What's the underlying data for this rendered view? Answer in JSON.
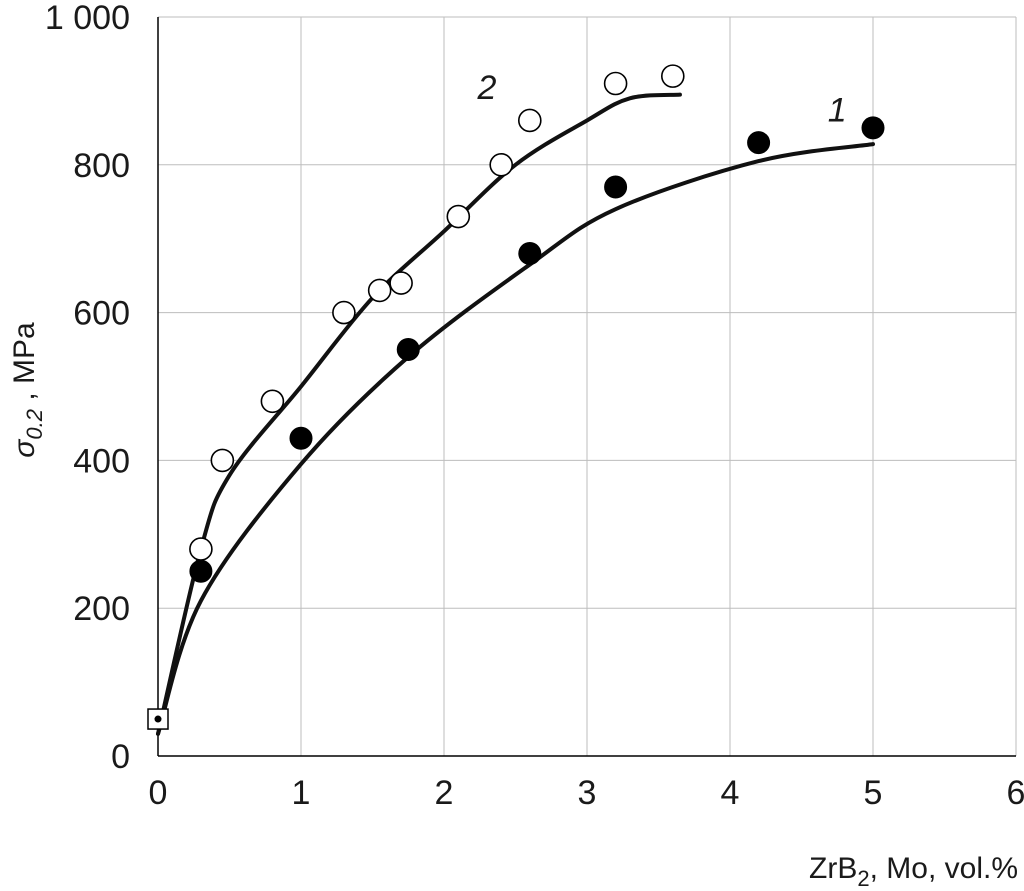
{
  "chart_data": {
    "type": "scatter",
    "xlabel": {
      "main": "ZrB",
      "sub": "2",
      "rest": ", Mo, vol.%"
    },
    "ylabel": {
      "sym": "σ",
      "sub": "0.2",
      "rest": " , MPa"
    },
    "xlim": [
      0,
      6
    ],
    "ylim": [
      0,
      1000
    ],
    "xticks": [
      "0",
      "1",
      "2",
      "3",
      "4",
      "5",
      "6"
    ],
    "yticks": [
      "0",
      "200",
      "400",
      "600",
      "800",
      "1 000"
    ],
    "grid": true,
    "series": [
      {
        "name": "1",
        "marker": "filled-circle",
        "points": [
          [
            0.3,
            250
          ],
          [
            1.0,
            430
          ],
          [
            1.75,
            550
          ],
          [
            2.6,
            680
          ],
          [
            3.2,
            770
          ],
          [
            4.2,
            830
          ],
          [
            5.0,
            850
          ]
        ],
        "fit": [
          [
            0,
            30
          ],
          [
            0.3,
            210
          ],
          [
            1.0,
            395
          ],
          [
            1.75,
            540
          ],
          [
            2.6,
            665
          ],
          [
            3.2,
            740
          ],
          [
            4.2,
            805
          ],
          [
            5.0,
            828
          ]
        ]
      },
      {
        "name": "2",
        "marker": "open-circle",
        "points": [
          [
            0.3,
            280
          ],
          [
            0.45,
            400
          ],
          [
            0.8,
            480
          ],
          [
            1.3,
            600
          ],
          [
            1.55,
            630
          ],
          [
            1.7,
            640
          ],
          [
            2.1,
            730
          ],
          [
            2.4,
            800
          ],
          [
            2.6,
            860
          ],
          [
            3.2,
            910
          ],
          [
            3.6,
            920
          ]
        ],
        "fit": [
          [
            0,
            30
          ],
          [
            0.3,
            280
          ],
          [
            0.5,
            380
          ],
          [
            1.0,
            500
          ],
          [
            1.5,
            620
          ],
          [
            2.0,
            710
          ],
          [
            2.5,
            800
          ],
          [
            3.0,
            860
          ],
          [
            3.3,
            890
          ],
          [
            3.65,
            895
          ]
        ]
      }
    ],
    "reference_point": {
      "x": 0,
      "y": 50,
      "marker": "open-square"
    },
    "colors": {
      "marker": "#000000",
      "line": "#111111",
      "grid": "#bdbdbd"
    }
  }
}
